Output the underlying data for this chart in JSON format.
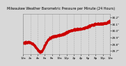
{
  "title": "Milwaukee Weather Barometric Pressure per Minute (24 Hours)",
  "title_fontsize": 3.5,
  "line_color": "#cc0000",
  "background_color": "#d8d8d8",
  "plot_bg_color": "#d8d8d8",
  "grid_color": "#aaaaaa",
  "ylim": [
    29.65,
    30.25
  ],
  "yticks": [
    29.7,
    29.8,
    29.9,
    30.0,
    30.1,
    30.2
  ],
  "ytick_labels": [
    "29.7\"",
    "29.8\"",
    "29.9\"",
    "30.0\"",
    "30.1\"",
    "30.2\""
  ],
  "num_points": 1440,
  "x_start": 0,
  "x_end": 1440,
  "xtick_positions": [
    0,
    120,
    240,
    360,
    480,
    600,
    720,
    840,
    960,
    1080,
    1200,
    1320,
    1440
  ],
  "xtick_labels": [
    "12a",
    "2a",
    "4a",
    "6a",
    "8a",
    "10a",
    "12p",
    "2p",
    "4p",
    "6p",
    "8p",
    "10p",
    "12a"
  ],
  "tick_fontsize": 3.0,
  "line_width": 0.6,
  "markersize": 0.8
}
